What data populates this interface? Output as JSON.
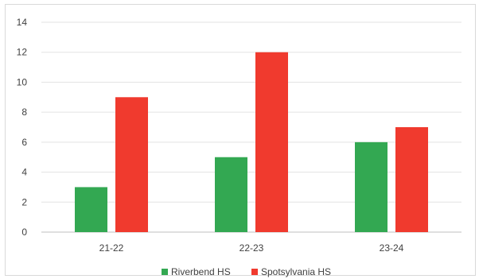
{
  "chart_data": {
    "type": "bar",
    "categories": [
      "21-22",
      "22-23",
      "23-24"
    ],
    "series": [
      {
        "name": "Riverbend HS",
        "values": [
          3,
          5,
          6
        ],
        "color": "#33a852"
      },
      {
        "name": "Spotsylvania HS",
        "values": [
          9,
          12,
          7
        ],
        "color": "#f03a2e"
      }
    ],
    "ylim": [
      0,
      14
    ],
    "yticks": [
      0,
      2,
      4,
      6,
      8,
      10,
      12,
      14
    ],
    "grid": true,
    "legend_position": "bottom",
    "title": "",
    "xlabel": "",
    "ylabel": ""
  }
}
